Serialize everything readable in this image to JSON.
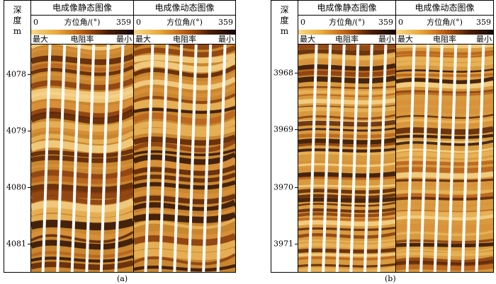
{
  "panels": [
    {
      "id": "a",
      "caption": "(a)",
      "depth_title": [
        "深",
        "度",
        "m"
      ],
      "depth_ticks": [
        "4078",
        "4079",
        "4080",
        "4081"
      ],
      "tracks": [
        {
          "title": "电成像静态图像",
          "scale_min": "0",
          "scale_label": "方位角/(°)",
          "scale_max": "359",
          "res_left": "最大",
          "res_mid": "电阻率",
          "res_right": "最小"
        },
        {
          "title": "电成像动态图像",
          "scale_min": "0",
          "scale_label": "方位角/(°)",
          "scale_max": "359",
          "res_left": "最大",
          "res_mid": "电阻率",
          "res_right": "最小"
        }
      ]
    },
    {
      "id": "b",
      "caption": "(b)",
      "depth_title": [
        "深",
        "度",
        "m"
      ],
      "depth_ticks": [
        "3968",
        "3969",
        "3970",
        "3971"
      ],
      "tracks": [
        {
          "title": "电成像静态图像",
          "scale_min": "0",
          "scale_label": "方位角/(°)",
          "scale_max": "359",
          "res_left": "最大",
          "res_mid": "电阻率",
          "res_right": "最小"
        },
        {
          "title": "电成像动态图像",
          "scale_min": "0",
          "scale_label": "方位角/(°)",
          "scale_max": "359",
          "res_left": "最大",
          "res_mid": "电阻率",
          "res_right": "最小"
        }
      ]
    }
  ],
  "colors": {
    "resistivity_high": "#f7d98a",
    "resistivity_mid": "#b85b12",
    "resistivity_low": "#150803"
  }
}
